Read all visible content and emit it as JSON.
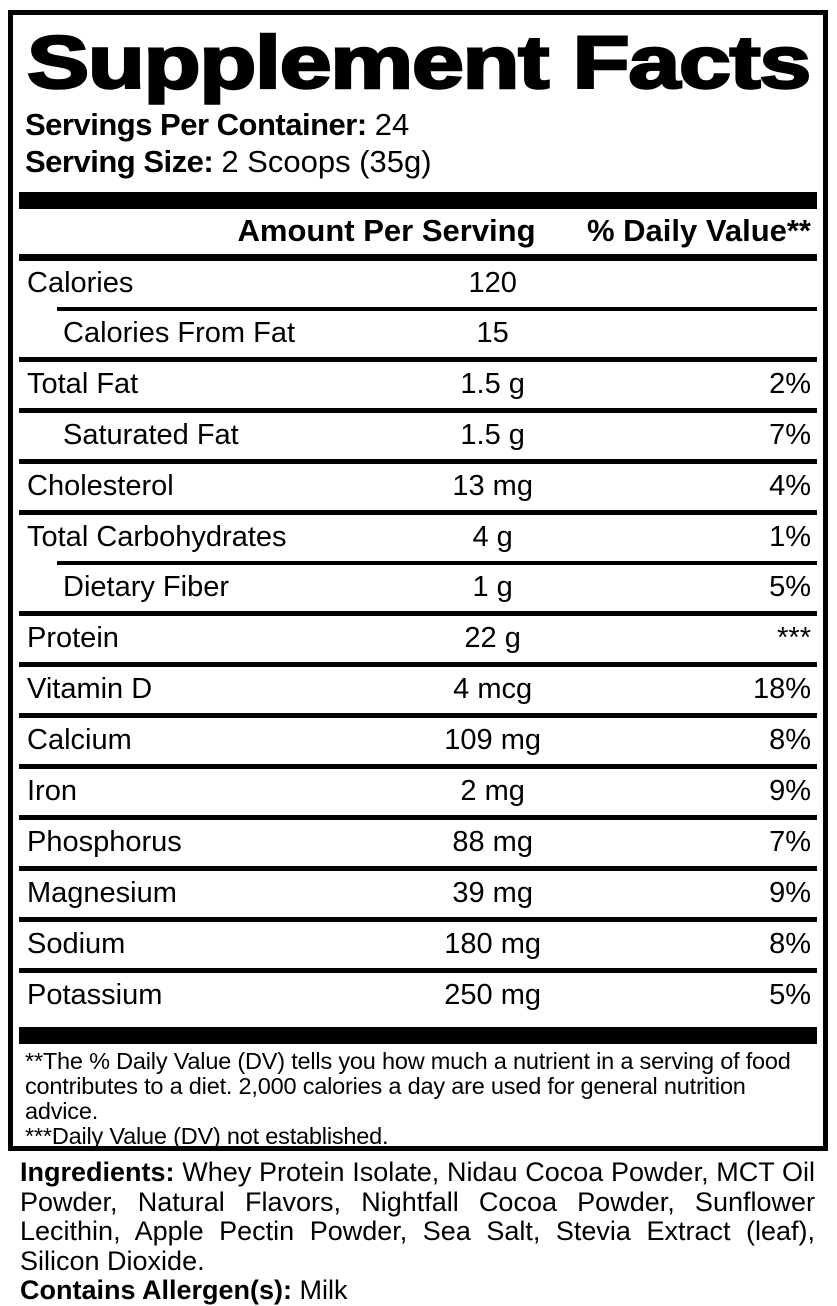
{
  "title": "Supplement Facts",
  "servings": {
    "label": "Servings Per Container:",
    "value": "24"
  },
  "serving_size": {
    "label": "Serving Size:",
    "value": "2 Scoops (35g)"
  },
  "table": {
    "amount_header": "Amount Per Serving",
    "dv_header": "% Daily Value**",
    "rows": [
      {
        "name": "Calories",
        "amount": "120",
        "dv": "",
        "sub": false,
        "sep_after": "indented"
      },
      {
        "name": "Calories From Fat",
        "amount": "15",
        "dv": "",
        "sub": true,
        "sep_after": "full"
      },
      {
        "name": "Total Fat",
        "amount": "1.5 g",
        "dv": "2%",
        "sub": false,
        "sep_after": "full"
      },
      {
        "name": "Saturated Fat",
        "amount": "1.5 g",
        "dv": "7%",
        "sub": true,
        "sep_after": "full"
      },
      {
        "name": "Cholesterol",
        "amount": "13 mg",
        "dv": "4%",
        "sub": false,
        "sep_after": "full"
      },
      {
        "name": "Total Carbohydrates",
        "amount": "4 g",
        "dv": "1%",
        "sub": false,
        "sep_after": "indented"
      },
      {
        "name": "Dietary Fiber",
        "amount": "1 g",
        "dv": "5%",
        "sub": true,
        "sep_after": "full"
      },
      {
        "name": "Protein",
        "amount": "22 g",
        "dv": "***",
        "sub": false,
        "sep_after": "full"
      },
      {
        "name": "Vitamin D",
        "amount": "4 mcg",
        "dv": "18%",
        "sub": false,
        "sep_after": "full"
      },
      {
        "name": "Calcium",
        "amount": "109 mg",
        "dv": "8%",
        "sub": false,
        "sep_after": "full"
      },
      {
        "name": "Iron",
        "amount": "2 mg",
        "dv": "9%",
        "sub": false,
        "sep_after": "full"
      },
      {
        "name": "Phosphorus",
        "amount": "88 mg",
        "dv": "7%",
        "sub": false,
        "sep_after": "full"
      },
      {
        "name": "Magnesium",
        "amount": "39 mg",
        "dv": "9%",
        "sub": false,
        "sep_after": "full"
      },
      {
        "name": "Sodium",
        "amount": "180 mg",
        "dv": "8%",
        "sub": false,
        "sep_after": "full"
      },
      {
        "name": "Potassium",
        "amount": "250 mg",
        "dv": "5%",
        "sub": false,
        "sep_after": "none"
      }
    ]
  },
  "footnotes": {
    "dv_note": "**The % Daily Value (DV) tells you how much a nutrient in a serving of food contributes to a diet. 2,000 calories a day are used for general nutrition advice.",
    "not_established_note": "***Daily Value (DV) not established."
  },
  "ingredients": {
    "label": "Ingredients:",
    "value": " Whey Protein Isolate, Nidau Cocoa Powder, MCT Oil Powder, Natural Flavors, Nightfall Cocoa Powder, Sunflower Lecithin, Apple Pectin Powder, Sea Salt, Stevia Extract (leaf), Silicon Dioxide."
  },
  "allergens": {
    "label": "Contains Allergen(s):",
    "value": " Milk"
  },
  "colors": {
    "text": "#000000",
    "background": "#ffffff"
  }
}
